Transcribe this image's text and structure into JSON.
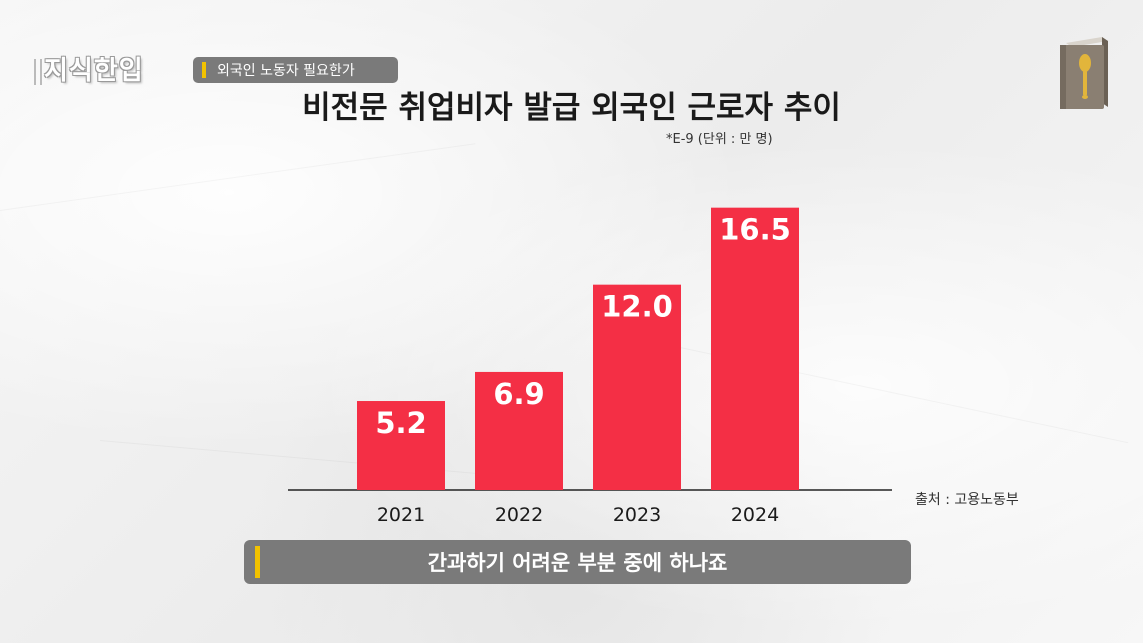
{
  "header": {
    "logo_text": "지식한입",
    "topic": "외국인 노동자 필요한가"
  },
  "chart_data": {
    "type": "bar",
    "title": "비전문 취업비자 발급 외국인 근로자 추이",
    "unit_note": "*E-9 (단위 : 만 명)",
    "source": "출처 : 고용노동부",
    "categories": [
      "2021",
      "2022",
      "2023",
      "2024"
    ],
    "values": [
      5.2,
      6.9,
      12.0,
      16.5
    ],
    "value_labels": [
      "5.2",
      "6.9",
      "12.0",
      "16.5"
    ],
    "ylim": [
      0,
      18
    ],
    "bar_color": "#f42f45",
    "grid": false,
    "legend": "none"
  },
  "caption": {
    "text": "간과하기 어려운 부분 중에 하나죠"
  },
  "colors": {
    "accent": "#f2c200",
    "tag_background": "#7a7a7a"
  },
  "icons": [
    "book-icon"
  ]
}
